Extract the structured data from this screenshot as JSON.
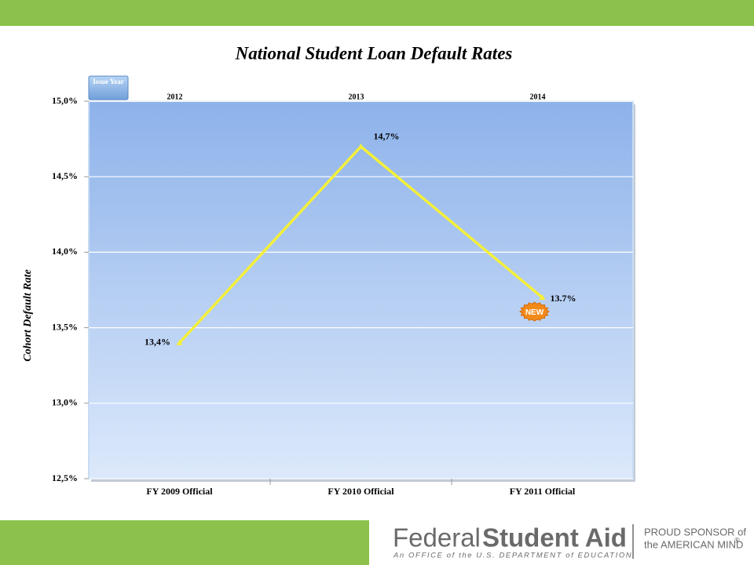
{
  "chart_data": {
    "type": "line",
    "title": "National Student Loan Default Rates",
    "y_label": "Cohort Default Rate",
    "categories": [
      "FY 2009 Official",
      "FY 2010 Official",
      "FY 2011 Official"
    ],
    "issue_year_label": "Issue Year",
    "issue_years": [
      "2012",
      "2013",
      "2014"
    ],
    "values": [
      13.4,
      14.7,
      13.7
    ],
    "value_labels": [
      "13,4%",
      "14,7%",
      "13.7%"
    ],
    "color": "#f4ef3a",
    "badge": "NEW",
    "ylim": [
      12.5,
      15.0
    ],
    "yticks": [
      {
        "value": 12.5,
        "label": "12,5%"
      },
      {
        "value": 13.0,
        "label": "13,0%"
      },
      {
        "value": 13.5,
        "label": "13,5%"
      },
      {
        "value": 14.0,
        "label": "14,0%"
      },
      {
        "value": 14.5,
        "label": "14,5%"
      },
      {
        "value": 15.0,
        "label": "15,0%"
      }
    ],
    "grid": true
  },
  "footer": {
    "brand_light": "Federal",
    "brand_bold": "Student Aid",
    "tagline": "An OFFICE of the U.S. DEPARTMENT of EDUCATION",
    "sponsor_line1": "PROUD SPONSOR of",
    "sponsor_line2": "the AMERICAN MIND",
    "registered": "®"
  }
}
